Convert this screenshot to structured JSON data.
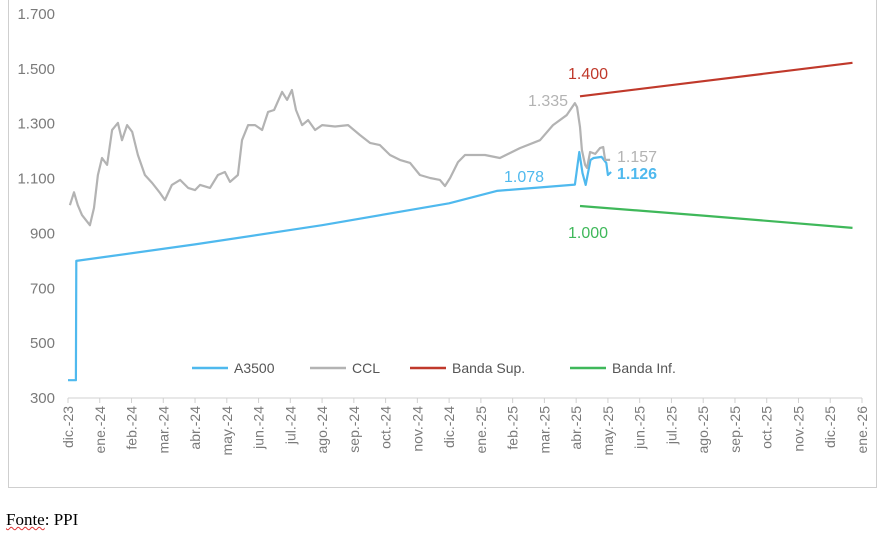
{
  "chart_data": {
    "type": "line",
    "title": "",
    "xlabel": "",
    "ylabel": "",
    "ylim": [
      300,
      1700
    ],
    "yticks": [
      "1.700",
      "1.500",
      "1.300",
      "1.100",
      "900",
      "700",
      "500",
      "300"
    ],
    "ytick_values": [
      1700,
      1500,
      1300,
      1100,
      900,
      700,
      500,
      300
    ],
    "x_categories": [
      "dic.-23",
      "ene.-24",
      "feb.-24",
      "mar.-24",
      "abr.-24",
      "may.-24",
      "jun.-24",
      "jul.-24",
      "ago.-24",
      "sep.-24",
      "oct.-24",
      "nov.-24",
      "dic.-24",
      "ene.-25",
      "feb.-25",
      "mar.-25",
      "abr.-25",
      "may.-25",
      "jun.-25",
      "jul.-25",
      "ago.-25",
      "sep.-25",
      "oct.-25",
      "nov.-25",
      "dic.-25",
      "ene.-26"
    ],
    "x_unit": "months since dic.-23",
    "legend_position": "bottom-center",
    "grid": false,
    "series": [
      {
        "name": "A3500",
        "color": "#4fb9ee",
        "points": [
          [
            0,
            365
          ],
          [
            0.25,
            365
          ],
          [
            0.26,
            800
          ],
          [
            4,
            860
          ],
          [
            8,
            930
          ],
          [
            12,
            1010
          ],
          [
            13.5,
            1055
          ],
          [
            15.96,
            1078
          ],
          [
            16.1,
            1197
          ],
          [
            16.2,
            1120
          ],
          [
            16.3,
            1077
          ],
          [
            16.45,
            1168
          ],
          [
            16.55,
            1175
          ],
          [
            16.8,
            1179
          ],
          [
            16.95,
            1157
          ],
          [
            17.0,
            1113
          ],
          [
            17.1,
            1124
          ]
        ]
      },
      {
        "name": "CCL",
        "color": "#b3b3b3",
        "points": [
          [
            0.06,
            1003
          ],
          [
            0.19,
            1050
          ],
          [
            0.31,
            1003
          ],
          [
            0.44,
            967
          ],
          [
            0.69,
            930
          ],
          [
            0.82,
            993
          ],
          [
            0.94,
            1113
          ],
          [
            1.07,
            1175
          ],
          [
            1.23,
            1150
          ],
          [
            1.39,
            1277
          ],
          [
            1.57,
            1303
          ],
          [
            1.7,
            1240
          ],
          [
            1.86,
            1295
          ],
          [
            2.02,
            1270
          ],
          [
            2.2,
            1186
          ],
          [
            2.42,
            1113
          ],
          [
            2.65,
            1084
          ],
          [
            2.9,
            1047
          ],
          [
            3.05,
            1022
          ],
          [
            3.27,
            1077
          ],
          [
            3.53,
            1095
          ],
          [
            3.78,
            1066
          ],
          [
            4.0,
            1058
          ],
          [
            4.16,
            1077
          ],
          [
            4.47,
            1066
          ],
          [
            4.72,
            1113
          ],
          [
            4.94,
            1124
          ],
          [
            5.1,
            1088
          ],
          [
            5.35,
            1113
          ],
          [
            5.48,
            1240
          ],
          [
            5.67,
            1295
          ],
          [
            5.89,
            1295
          ],
          [
            6.11,
            1277
          ],
          [
            6.3,
            1343
          ],
          [
            6.49,
            1350
          ],
          [
            6.74,
            1416
          ],
          [
            6.9,
            1387
          ],
          [
            7.05,
            1423
          ],
          [
            7.18,
            1350
          ],
          [
            7.37,
            1295
          ],
          [
            7.56,
            1313
          ],
          [
            7.78,
            1277
          ],
          [
            8.0,
            1295
          ],
          [
            8.41,
            1290
          ],
          [
            8.82,
            1295
          ],
          [
            9.19,
            1259
          ],
          [
            9.51,
            1230
          ],
          [
            9.82,
            1222
          ],
          [
            10.14,
            1186
          ],
          [
            10.45,
            1168
          ],
          [
            10.77,
            1157
          ],
          [
            11.08,
            1113
          ],
          [
            11.4,
            1102
          ],
          [
            11.71,
            1095
          ],
          [
            11.87,
            1073
          ],
          [
            12.03,
            1102
          ],
          [
            12.28,
            1160
          ],
          [
            12.5,
            1186
          ],
          [
            12.81,
            1186
          ],
          [
            13.13,
            1186
          ],
          [
            13.6,
            1175
          ],
          [
            14.23,
            1211
          ],
          [
            14.86,
            1240
          ],
          [
            15.27,
            1295
          ],
          [
            15.7,
            1331
          ],
          [
            15.96,
            1375
          ],
          [
            16.03,
            1360
          ],
          [
            16.12,
            1288
          ],
          [
            16.18,
            1204
          ],
          [
            16.28,
            1150
          ],
          [
            16.34,
            1139
          ],
          [
            16.44,
            1197
          ],
          [
            16.6,
            1190
          ],
          [
            16.75,
            1211
          ],
          [
            16.85,
            1215
          ],
          [
            16.91,
            1168
          ],
          [
            17.07,
            1168
          ]
        ]
      },
      {
        "name": "Banda Sup.",
        "color": "#c0392b",
        "points": [
          [
            16.12,
            1400
          ],
          [
            20,
            1455
          ],
          [
            24.7,
            1522
          ]
        ]
      },
      {
        "name": "Banda Inf.",
        "color": "#3fb85a",
        "points": [
          [
            16.12,
            1000
          ],
          [
            20,
            965
          ],
          [
            24.7,
            920
          ]
        ]
      }
    ],
    "annotations": [
      {
        "text": "1.400",
        "color": "#c0392b",
        "x": 16.1,
        "value": 1400
      },
      {
        "text": "1.335",
        "color": "#b3b3b3",
        "x": 15.5,
        "value": 1335
      },
      {
        "text": "1.078",
        "color": "#4fb9ee",
        "x": 15.5,
        "value": 1078
      },
      {
        "text": "1.157",
        "color": "#b3b3b3",
        "x": 17.3,
        "value": 1157
      },
      {
        "text": "1.126",
        "color": "#4fb9ee",
        "x": 17.3,
        "value": 1126
      },
      {
        "text": "1.000",
        "color": "#3fb85a",
        "x": 16.1,
        "value": 1000
      }
    ]
  },
  "source": {
    "prefix": "Fonte",
    "suffix": ": PPI"
  }
}
